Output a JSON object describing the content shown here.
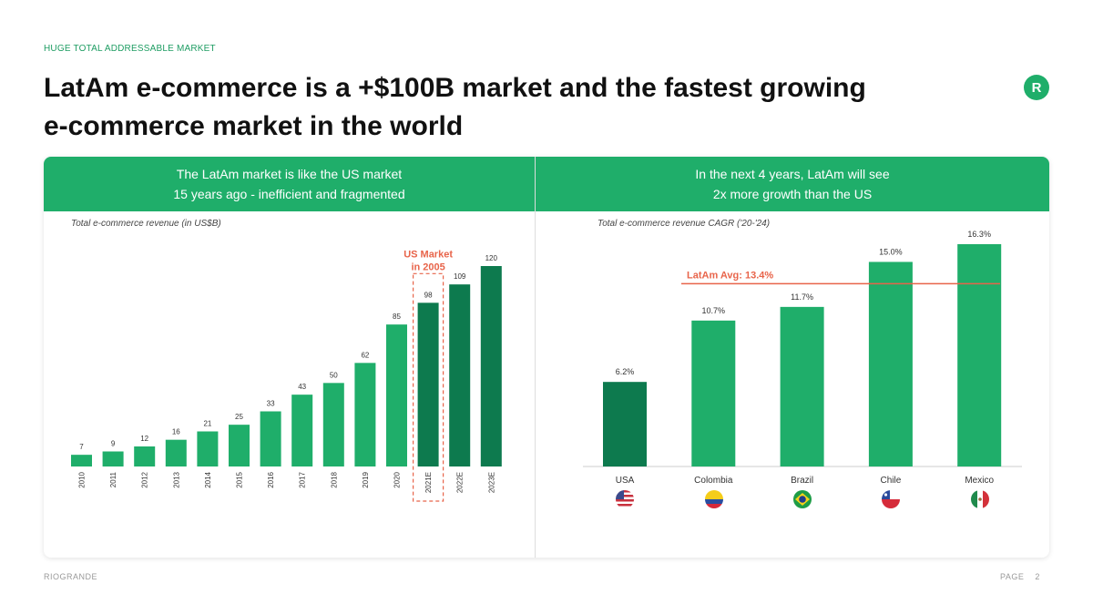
{
  "eyebrow": "HUGE TOTAL ADDRESSABLE MARKET",
  "headline_line1": "LatAm e-commerce is a +$100B market and the fastest growing",
  "headline_line2": "e-commerce market in the world",
  "logo_letter": "R",
  "left_panel": {
    "header_line1": "The LatAm market is like the US market",
    "header_line2": "15 years ago - inefficient and fragmented"
  },
  "right_panel": {
    "header_line1": "In the next 4 years, LatAm will see",
    "header_line2": "2x more growth than the US"
  },
  "footer": {
    "brand": "RIOGRANDE",
    "page_label": "PAGE",
    "page_number": "2"
  },
  "colors": {
    "green": "#1fae6a",
    "bar_light": "#1fae6a",
    "bar_dark": "#0d7a4e",
    "highlight": "#e8644a"
  },
  "chart_data": [
    {
      "type": "bar",
      "title": "Total e-commerce revenue (in US$B)",
      "categories": [
        "2010",
        "2011",
        "2012",
        "2013",
        "2014",
        "2015",
        "2016",
        "2017",
        "2018",
        "2019",
        "2020",
        "2021E",
        "2022E",
        "2023E"
      ],
      "values": [
        7,
        9,
        12,
        16,
        21,
        25,
        33,
        43,
        50,
        62,
        85,
        98,
        109,
        120
      ],
      "dark_categories": [
        "2021E",
        "2022E",
        "2023E"
      ],
      "highlight": {
        "category": "2021E",
        "label_line1": "US Market",
        "label_line2": "in 2005"
      },
      "ylim": [
        0,
        120
      ],
      "grid": false
    },
    {
      "type": "bar",
      "title": "Total e-commerce revenue CAGR ('20-'24)",
      "categories": [
        "USA",
        "Colombia",
        "Brazil",
        "Chile",
        "Mexico"
      ],
      "values": [
        6.2,
        10.7,
        11.7,
        15.0,
        16.3
      ],
      "value_labels": [
        "6.2%",
        "10.7%",
        "11.7%",
        "15.0%",
        "16.3%"
      ],
      "dark_categories": [
        "USA"
      ],
      "flags": [
        "us-flag-icon",
        "colombia-flag-icon",
        "brazil-flag-icon",
        "chile-flag-icon",
        "mexico-flag-icon"
      ],
      "reference_line": {
        "value": 13.4,
        "label": "LatAm Avg: 13.4%"
      },
      "ylim": [
        0,
        16.3
      ],
      "grid": false
    }
  ]
}
